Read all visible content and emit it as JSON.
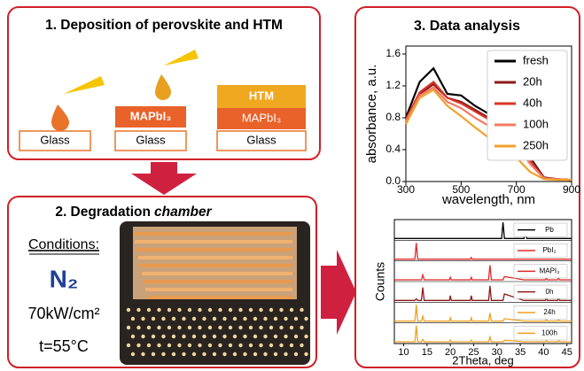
{
  "panels": {
    "deposition": {
      "title": "1. Deposition of perovskite and HTM",
      "stack1": {
        "glass": "Glass"
      },
      "stack2": {
        "mapbi3": "MAPbI₃",
        "glass": "Glass"
      },
      "stack3": {
        "htm": "HTM",
        "mapbi3": "MAPbI₃",
        "glass": "Glass"
      }
    },
    "degradation": {
      "title": "2. Degradation",
      "title_emphasis": "chamber",
      "conditions": "Conditions:",
      "atmosphere": "N₂",
      "intensity": "70kW/cm²",
      "temperature": "t=55°C"
    },
    "analysis": {
      "title": "3. Data analysis"
    }
  },
  "chart_data": [
    {
      "type": "line",
      "x_label": "wavelength, nm",
      "y_label": "absorbance, a.u.",
      "x": [
        300,
        350,
        400,
        450,
        500,
        550,
        600,
        650,
        700,
        750,
        800,
        850,
        900
      ],
      "series": [
        {
          "name": "fresh",
          "color": "#000000",
          "values": [
            0.8,
            1.25,
            1.42,
            1.1,
            1.08,
            0.95,
            0.85,
            0.72,
            0.55,
            0.3,
            0.05,
            0.03,
            0.02
          ]
        },
        {
          "name": "20h",
          "color": "#8b1a1a",
          "values": [
            0.78,
            1.1,
            1.22,
            1.05,
            1.0,
            0.9,
            0.8,
            0.68,
            0.52,
            0.28,
            0.05,
            0.03,
            0.02
          ]
        },
        {
          "name": "40h",
          "color": "#d9352a",
          "values": [
            0.78,
            1.12,
            1.25,
            1.05,
            0.98,
            0.88,
            0.78,
            0.65,
            0.5,
            0.26,
            0.04,
            0.03,
            0.02
          ]
        },
        {
          "name": "100h",
          "color": "#f27a62",
          "values": [
            0.75,
            1.08,
            1.18,
            1.0,
            0.92,
            0.8,
            0.7,
            0.58,
            0.45,
            0.22,
            0.04,
            0.03,
            0.02
          ]
        },
        {
          "name": "250h",
          "color": "#f2a12a",
          "values": [
            0.72,
            1.05,
            1.15,
            0.95,
            0.82,
            0.68,
            0.55,
            0.42,
            0.3,
            0.12,
            0.03,
            0.02,
            0.02
          ]
        }
      ],
      "xlim": [
        300,
        900
      ],
      "ylim": [
        0,
        1.7
      ],
      "xticks": [
        300,
        500,
        700,
        900
      ],
      "yticks": [
        {
          "value": 0,
          "label": "0.0"
        },
        0.4,
        0.8,
        1.2,
        1.6
      ]
    },
    {
      "type": "stacked-line",
      "x_label": "2Theta, deg",
      "y_label": "Counts",
      "x": [
        8,
        12.4,
        12.7,
        13.0,
        13.8,
        14.1,
        14.4,
        19.8,
        20.0,
        20.2,
        24.3,
        24.5,
        24.7,
        28.2,
        28.5,
        28.8,
        31.0,
        31.3,
        31.6,
        35.8,
        36.1,
        36.4,
        40.4,
        40.6,
        40.8,
        43.0,
        43.2,
        43.4,
        46
      ],
      "series": [
        {
          "name": "Pb",
          "color": "#000000",
          "values": [
            0,
            0,
            0,
            0,
            0,
            0,
            0,
            0,
            0,
            0,
            0,
            0,
            0,
            0,
            0,
            0,
            0,
            1.0,
            0,
            0,
            0.45,
            0,
            0,
            0,
            0,
            0,
            0,
            0,
            0
          ]
        },
        {
          "name": "PbI₂",
          "color": "#e02828",
          "values": [
            0,
            0,
            1.0,
            0,
            0,
            0,
            0,
            0,
            0,
            0,
            0,
            0.1,
            0,
            0,
            0,
            0,
            0,
            0,
            0,
            0,
            0,
            0,
            0,
            0,
            0,
            0,
            0,
            0,
            0
          ]
        },
        {
          "name": "MAPI₃",
          "color": "#e02828",
          "values": [
            0,
            0,
            0,
            0,
            0,
            0.3,
            0,
            0,
            0.15,
            0,
            0,
            0.15,
            0,
            0,
            0.9,
            0,
            0,
            0,
            0.2,
            0,
            0,
            0,
            0,
            0.15,
            0,
            0,
            0.2,
            0,
            0
          ]
        },
        {
          "name": "0h",
          "color": "#8b1a1a",
          "values": [
            0,
            0,
            0.1,
            0,
            0,
            0.8,
            0,
            0,
            0.3,
            0,
            0,
            0.3,
            0,
            0,
            0.9,
            0,
            0,
            0,
            0.4,
            0,
            0,
            0,
            0,
            0.3,
            0,
            0,
            0.3,
            0,
            0
          ]
        },
        {
          "name": "24h",
          "color": "#f0a020",
          "values": [
            0,
            0,
            1.0,
            0,
            0,
            0.3,
            0,
            0,
            0.2,
            0,
            0,
            0.2,
            0,
            0,
            0.5,
            0,
            0,
            0,
            0.15,
            0,
            0,
            0,
            0,
            0.15,
            0,
            0,
            0.2,
            0,
            0
          ]
        },
        {
          "name": "100h",
          "color": "#f0a020",
          "values": [
            0,
            0,
            1.0,
            0,
            0,
            0.15,
            0,
            0,
            0.1,
            0,
            0,
            0.1,
            0,
            0,
            0.3,
            0,
            0,
            0,
            0.1,
            0,
            0,
            0,
            0,
            0.1,
            0,
            0,
            0.1,
            0,
            0
          ]
        }
      ],
      "xlim": [
        8,
        46
      ],
      "xticks": [
        10,
        15,
        20,
        25,
        30,
        35,
        40,
        45
      ]
    }
  ]
}
